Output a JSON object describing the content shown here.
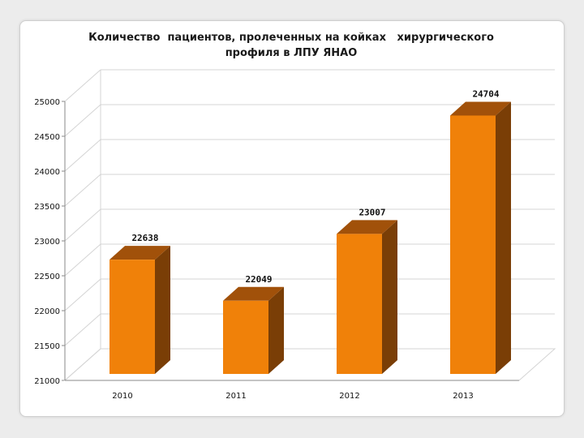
{
  "chart_data": {
    "type": "bar",
    "title_lines": [
      "Количество  пациентов, пролеченных на койках   хирургического",
      "профиля в ЛПУ ЯНАО"
    ],
    "categories": [
      "2010",
      "2011",
      "2012",
      "2013"
    ],
    "values": [
      22638,
      22049,
      23007,
      24704
    ],
    "data_labels": [
      "22638",
      "22049",
      "23007",
      "24704"
    ],
    "yticks": [
      21000,
      21500,
      22000,
      22500,
      23000,
      23500,
      24000,
      24500,
      25000
    ],
    "ylim": [
      21000,
      25000
    ],
    "xlabel": "",
    "ylabel": "",
    "grid": true,
    "legend": "none",
    "three_d": true
  },
  "colors": {
    "bar_front": "#f08109",
    "bar_top": "#a1510a",
    "bar_side": "#7a3e06",
    "grid": "#d4d4d4",
    "axis": "#8a8a8a"
  }
}
